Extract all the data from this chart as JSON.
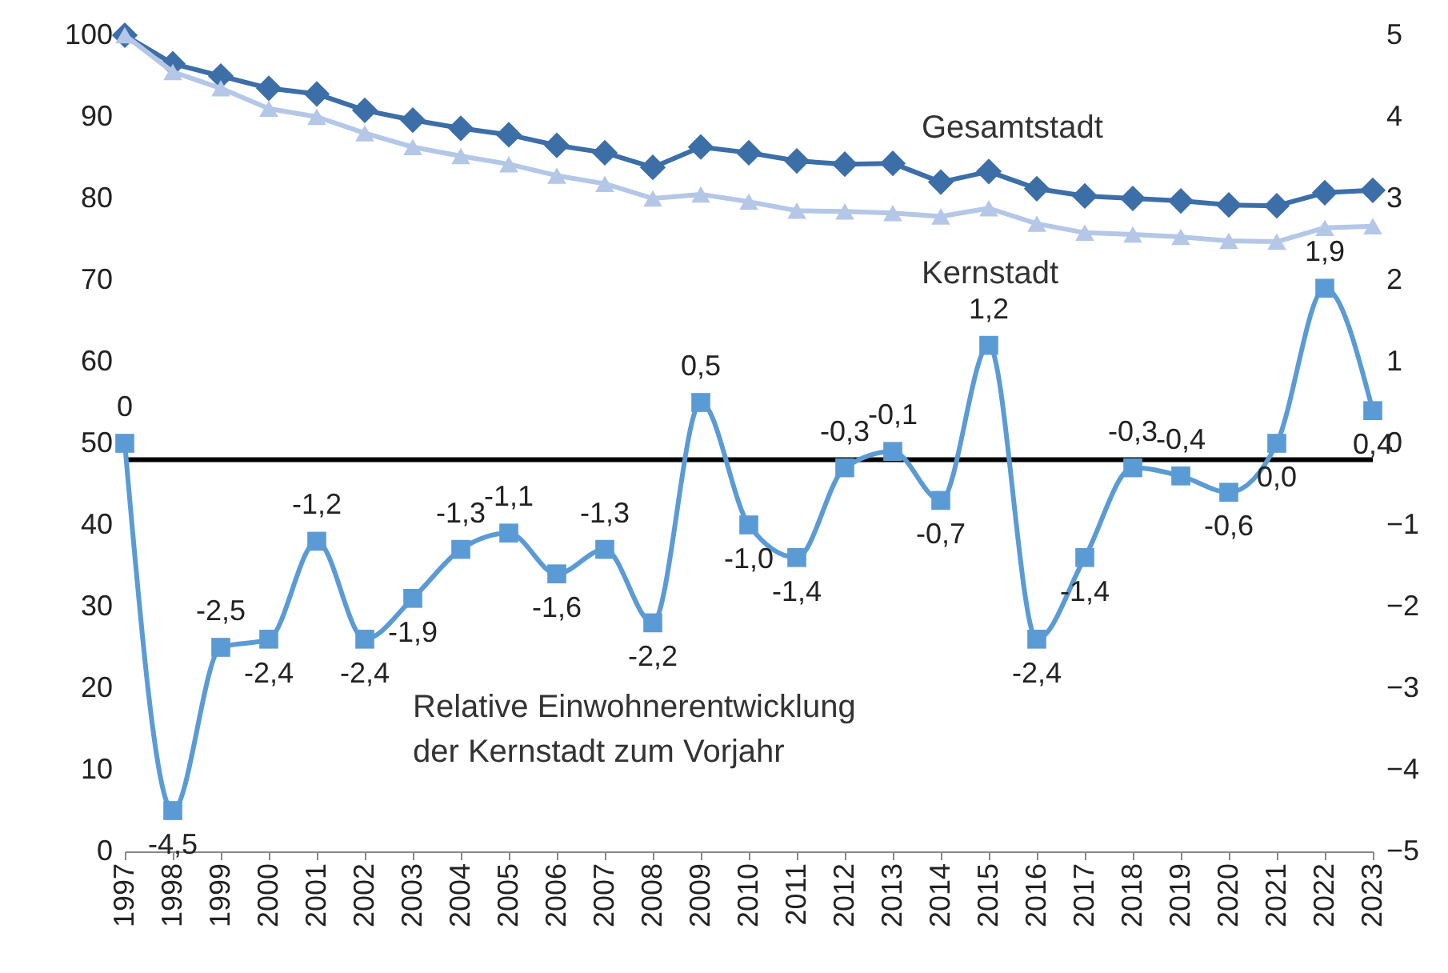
{
  "chart_data": {
    "type": "line",
    "categories": [
      "1997",
      "1998",
      "1999",
      "2000",
      "2001",
      "2002",
      "2003",
      "2004",
      "2005",
      "2006",
      "2007",
      "2008",
      "2009",
      "2010",
      "2011",
      "2012",
      "2013",
      "2014",
      "2015",
      "2016",
      "2017",
      "2018",
      "2019",
      "2020",
      "2021",
      "2022",
      "2023"
    ],
    "series": [
      {
        "name": "Gesamtstadt",
        "color": "#3c6ea8",
        "marker": "diamond",
        "values": [
          100,
          96.5,
          95,
          93.5,
          92.8,
          90.8,
          89.6,
          88.6,
          87.8,
          86.5,
          85.6,
          83.8,
          86.3,
          85.6,
          84.6,
          84.2,
          84.3,
          82,
          83.3,
          81.2,
          80.3,
          80,
          79.7,
          79.2,
          79.1,
          80.7,
          81
        ]
      },
      {
        "name": "Kernstadt",
        "color": "#b4c7e7",
        "marker": "triangle",
        "values": [
          100,
          95.5,
          93.5,
          91,
          90,
          88,
          86.3,
          85.2,
          84.2,
          82.8,
          81.8,
          80,
          80.5,
          79.6,
          78.5,
          78.4,
          78.2,
          77.8,
          78.8,
          76.9,
          75.8,
          75.6,
          75.3,
          74.8,
          74.7,
          76.4,
          76.6
        ]
      },
      {
        "color": "#5b9bd5",
        "marker": "square",
        "axis": "y2",
        "values": [
          0,
          -4.5,
          -2.5,
          -2.4,
          -1.2,
          -2.4,
          -1.9,
          -1.3,
          -1.1,
          -1.6,
          -1.3,
          -2.2,
          0.5,
          -1.0,
          -1.4,
          -0.3,
          -0.1,
          -0.7,
          1.2,
          -2.4,
          -1.4,
          -0.3,
          -0.4,
          -0.6,
          0.0,
          1.9,
          0.4
        ],
        "value_labels": [
          "0",
          "-4,5",
          "-2,5",
          "-2,4",
          "-1,2",
          "-2,4",
          "-1,9",
          "-1,3",
          "-1,1",
          "-1,6",
          "-1,3",
          "-2,2",
          "0,5",
          "-1,0",
          "-1,4",
          "-0,3",
          "-0,1",
          "-0,7",
          "1,2",
          "-2,4",
          "-1,4",
          "-0,3",
          "-0,4",
          "-0,6",
          "0,0",
          "1,9",
          "0,4"
        ]
      }
    ],
    "ylim": [
      0,
      100
    ],
    "yticks": [
      0,
      10,
      20,
      30,
      40,
      50,
      60,
      70,
      80,
      90,
      100
    ],
    "y2lim": [
      -5,
      5
    ],
    "y2ticks": [
      -5,
      -4,
      -3,
      -2,
      -1,
      0,
      1,
      2,
      3,
      4,
      5
    ],
    "ref_lines": [
      {
        "axis": "y2",
        "value": -0.2,
        "color": "#000000"
      }
    ],
    "annotations": [
      "Relative Einwohnerentwicklung\nder Kernstadt zum Vorjahr"
    ],
    "grid": false,
    "line_style": "solid"
  }
}
